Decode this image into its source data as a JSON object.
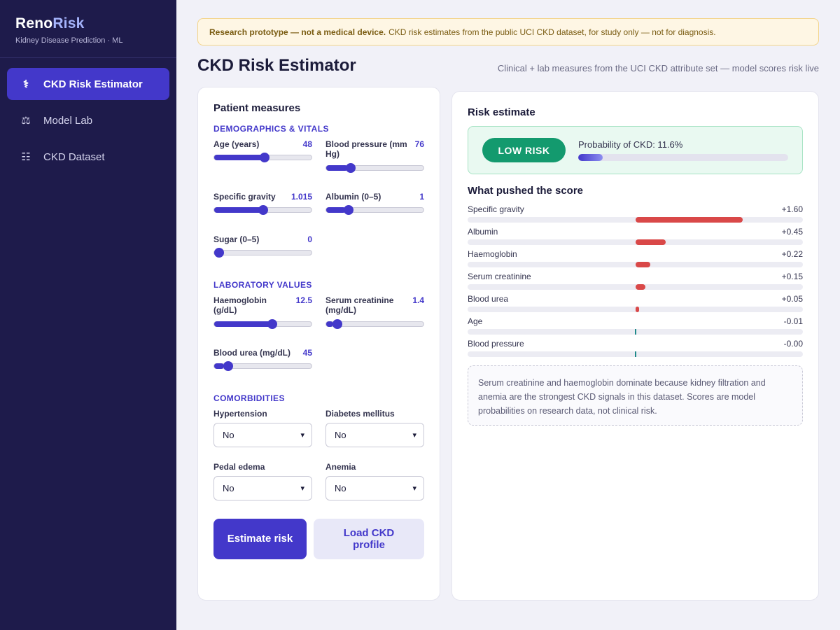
{
  "app": {
    "name_part1": "Reno",
    "name_part2": "Risk",
    "subtitle": "Kidney Disease Prediction · ML"
  },
  "nav": [
    {
      "label": "CKD Risk Estimator",
      "icon": "caduceus-icon",
      "glyph": "⚕",
      "active": true
    },
    {
      "label": "Model Lab",
      "icon": "scales-icon",
      "glyph": "⚖",
      "active": false
    },
    {
      "label": "CKD Dataset",
      "icon": "table-icon",
      "glyph": "☷",
      "active": false
    }
  ],
  "banner": {
    "bold": "Research prototype — not a medical device.",
    "text": "CKD risk estimates from the public UCI CKD dataset, for study only — not for diagnosis."
  },
  "page": {
    "title": "CKD Risk Estimator",
    "subtitle": "Clinical + lab measures from the UCI CKD attribute set — model scores risk live"
  },
  "form": {
    "title": "Patient measures",
    "sections": {
      "demographics": "DEMOGRAPHICS & VITALS",
      "lab": "LABORATORY VALUES",
      "comorbidities": "COMORBIDITIES"
    },
    "sliders": {
      "age": {
        "label": "Age (years)",
        "value": "48",
        "level": 0.52
      },
      "bp": {
        "label": "Blood pressure (mm Hg)",
        "value": "76",
        "level": 0.22
      },
      "sg": {
        "label": "Specific gravity",
        "value": "1.015",
        "level": 0.5
      },
      "albumin": {
        "label": "Albumin (0–5)",
        "value": "1",
        "level": 0.2
      },
      "sugar": {
        "label": "Sugar (0–5)",
        "value": "0",
        "level": 0.0
      },
      "hemo": {
        "label": "Haemoglobin (g/dL)",
        "value": "12.5",
        "level": 0.61
      },
      "sc": {
        "label": "Serum creatinine (mg/dL)",
        "value": "1.4",
        "level": 0.07
      },
      "bu": {
        "label": "Blood urea (mg/dL)",
        "value": "45",
        "level": 0.1
      }
    },
    "selects": {
      "htn": {
        "label": "Hypertension",
        "value": "No"
      },
      "dm": {
        "label": "Diabetes mellitus",
        "value": "No"
      },
      "pe": {
        "label": "Pedal edema",
        "value": "No"
      },
      "ane": {
        "label": "Anemia",
        "value": "No"
      }
    },
    "buttons": {
      "estimate": "Estimate risk",
      "load": "Load CKD profile"
    }
  },
  "risk": {
    "title": "Risk estimate",
    "badge": "LOW RISK",
    "probability_text": "Probability of CKD: 11.6%",
    "probability": 0.116,
    "colors": {
      "positive": "#d94848",
      "negative": "#1f8a8a",
      "badge": "#139a6e"
    }
  },
  "contributions": {
    "title": "What pushed the score",
    "max_abs": 1.6,
    "items": [
      {
        "name": "Specific gravity",
        "label": "+1.60",
        "value": 1.6
      },
      {
        "name": "Albumin",
        "label": "+0.45",
        "value": 0.45
      },
      {
        "name": "Haemoglobin",
        "label": "+0.22",
        "value": 0.22
      },
      {
        "name": "Serum creatinine",
        "label": "+0.15",
        "value": 0.15
      },
      {
        "name": "Blood urea",
        "label": "+0.05",
        "value": 0.05
      },
      {
        "name": "Age",
        "label": "-0.01",
        "value": -0.01
      },
      {
        "name": "Blood pressure",
        "label": "-0.00",
        "value": -0.001
      }
    ]
  },
  "note": "Serum creatinine and haemoglobin dominate because kidney filtration and anemia are the strongest CKD signals in this dataset. Scores are model probabilities on research data, not clinical risk."
}
